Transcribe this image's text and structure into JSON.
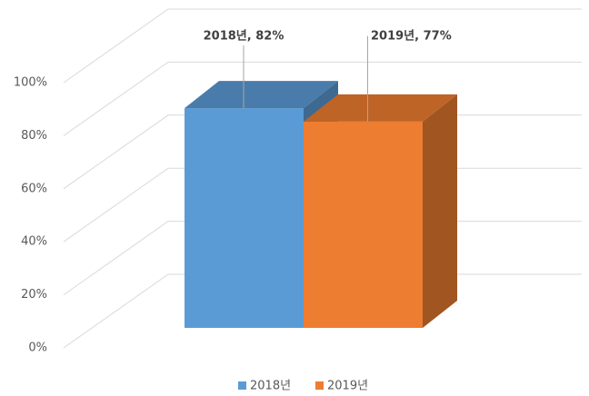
{
  "chart_data": {
    "type": "bar3d",
    "categories": [
      null
    ],
    "series": [
      {
        "name": "2018년",
        "color": "#5b9bd5",
        "values": [
          82
        ],
        "value_labels": [
          "2018년, 82%"
        ]
      },
      {
        "name": "2019년",
        "color": "#ed7d31",
        "values": [
          77
        ],
        "value_labels": [
          "2019년, 77%"
        ]
      }
    ],
    "ylim": [
      0,
      100
    ],
    "yticks": [
      {
        "value": 0,
        "label": "0%"
      },
      {
        "value": 20,
        "label": "20%"
      },
      {
        "value": 40,
        "label": "40%"
      },
      {
        "value": 60,
        "label": "60%"
      },
      {
        "value": 80,
        "label": "80%"
      },
      {
        "value": 100,
        "label": "100%"
      }
    ],
    "grid": true,
    "legend": "bottom"
  }
}
